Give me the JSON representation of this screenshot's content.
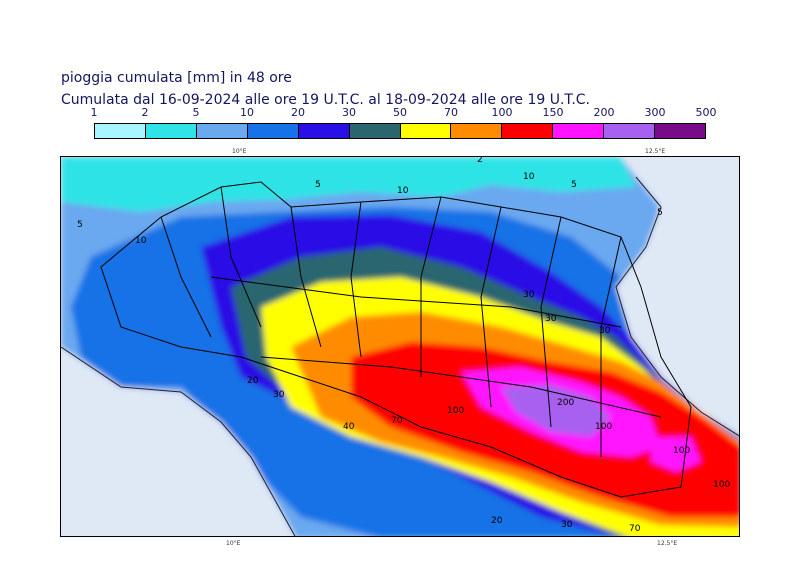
{
  "title": {
    "line1": "pioggia cumulata [mm] in 48 ore",
    "line2": "Cumulata dal 16-09-2024 alle ore 19 U.T.C. al 18-09-2024 alle ore 19 U.T.C."
  },
  "legend": {
    "thresholds": [
      "1",
      "2",
      "5",
      "10",
      "20",
      "30",
      "50",
      "70",
      "100",
      "150",
      "200",
      "300",
      "500"
    ],
    "colors": [
      "#a8f4ff",
      "#2fe3e6",
      "#6aa8f0",
      "#1672e6",
      "#2a10e6",
      "#2a6670",
      "#ffff00",
      "#ff8c00",
      "#ff0000",
      "#ff14ff",
      "#a860f0",
      "#7a0a8a"
    ]
  },
  "map": {
    "coords": {
      "top_left": "10°E",
      "top_right": "12.5°E",
      "bottom_left": "10°E",
      "bottom_right": "12.5°E"
    },
    "contour_labels": [
      "2",
      "5",
      "10",
      "10",
      "5",
      "5",
      "10",
      "30",
      "30",
      "30",
      "20",
      "30",
      "40",
      "70",
      "100",
      "200",
      "100",
      "100",
      "20",
      "30",
      "70",
      "100",
      "5"
    ]
  }
}
